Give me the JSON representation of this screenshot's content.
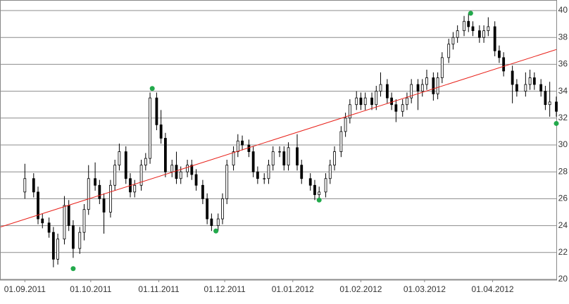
{
  "chart_data": {
    "type": "candlestick",
    "xlim": [
      "21.08.2011",
      "30.04.2012"
    ],
    "xticks": [
      "01.09.2011",
      "01.10.2011",
      "01.11.2011",
      "01.12.2011",
      "01.01.2012",
      "01.02.2012",
      "01.03.2012",
      "01.04.2012"
    ],
    "ylim": [
      20,
      40
    ],
    "yticks": [
      20,
      22,
      24,
      26,
      28,
      30,
      32,
      34,
      36,
      38,
      40
    ],
    "grid": true,
    "color": "#000000",
    "x": [
      "01.09.2011",
      "05.09.2011",
      "07.09.2011",
      "09.09.2011",
      "12.09.2011",
      "14.09.2011",
      "16.09.2011",
      "19.09.2011",
      "21.09.2011",
      "23.09.2011",
      "26.09.2011",
      "28.09.2011",
      "30.09.2011",
      "03.10.2011",
      "05.10.2011",
      "07.10.2011",
      "10.10.2011",
      "12.10.2011",
      "14.10.2011",
      "17.10.2011",
      "19.10.2011",
      "21.10.2011",
      "24.10.2011",
      "26.10.2011",
      "28.10.2011",
      "31.10.2011",
      "02.11.2011",
      "04.11.2011",
      "07.11.2011",
      "09.11.2011",
      "11.11.2011",
      "14.11.2011",
      "16.11.2011",
      "18.11.2011",
      "21.11.2011",
      "23.11.2011",
      "25.11.2011",
      "28.11.2011",
      "30.11.2011",
      "02.12.2011",
      "05.12.2011",
      "07.12.2011",
      "09.12.2011",
      "12.12.2011",
      "14.12.2011",
      "16.12.2011",
      "19.12.2011",
      "21.12.2011",
      "23.12.2011",
      "26.12.2011",
      "28.12.2011",
      "30.12.2011",
      "03.01.2012",
      "05.01.2012",
      "09.01.2012",
      "11.01.2012",
      "13.01.2012",
      "16.01.2012",
      "18.01.2012",
      "20.01.2012",
      "23.01.2012",
      "25.01.2012",
      "27.01.2012",
      "30.01.2012",
      "01.02.2012",
      "03.02.2012",
      "06.02.2012",
      "08.02.2012",
      "10.02.2012",
      "13.02.2012",
      "15.02.2012",
      "17.02.2012",
      "20.02.2012",
      "22.02.2012",
      "24.02.2012",
      "27.02.2012",
      "29.02.2012",
      "02.03.2012",
      "05.03.2012",
      "07.03.2012",
      "09.03.2012",
      "12.03.2012",
      "14.03.2012",
      "16.03.2012",
      "19.03.2012",
      "21.03.2012",
      "23.03.2012",
      "26.03.2012",
      "28.03.2012",
      "30.03.2012",
      "02.04.2012",
      "04.04.2012",
      "06.04.2012",
      "10.04.2012",
      "12.04.2012",
      "16.04.2012",
      "18.04.2012",
      "20.04.2012",
      "23.04.2012",
      "25.04.2012",
      "27.04.2012",
      "30.04.2012"
    ],
    "open": [
      26.5,
      27.5,
      26.5,
      24.5,
      24.2,
      23.5,
      21.5,
      23,
      25.5,
      24,
      22.3,
      23.5,
      25.2,
      27.5,
      27,
      26,
      25,
      27,
      28.5,
      29.5,
      27.5,
      26.5,
      27,
      28.5,
      29,
      33.5,
      31.5,
      30.5,
      28,
      28.5,
      27.5,
      28,
      28.5,
      27.8,
      27,
      26,
      24.5,
      24,
      24.5,
      26,
      28.5,
      29.5,
      30.3,
      30,
      29.5,
      28,
      27.5,
      27.5,
      28.5,
      29.5,
      29.5,
      28.5,
      29.8,
      28.5,
      27.5,
      27,
      26.3,
      26.5,
      27.5,
      28.5,
      29.5,
      31,
      32,
      33,
      33.5,
      33,
      33.5,
      33,
      34,
      34.5,
      33.5,
      33,
      32.5,
      33,
      33.5,
      34.5,
      34,
      34.5,
      35,
      33.8,
      35,
      36.5,
      37.5,
      38,
      38.5,
      39.2,
      38.8,
      38.5,
      38,
      38.5,
      38.8,
      37,
      36.5,
      35.5,
      34.5,
      34,
      34.5,
      35,
      34.5,
      34,
      33,
      33.2
    ],
    "high": [
      28.6,
      27.9,
      26.9,
      24.9,
      24.6,
      23.9,
      23.4,
      26.2,
      25.9,
      24.4,
      23.9,
      25.6,
      28.5,
      28.7,
      27.4,
      26.4,
      27.4,
      28.9,
      30.1,
      29.9,
      27.9,
      27.4,
      28.9,
      29.4,
      33.9,
      33.9,
      32.6,
      30.9,
      28.9,
      29.5,
      28.4,
      28.9,
      28.9,
      28.2,
      27.4,
      26.4,
      24.9,
      24.9,
      26.4,
      28.9,
      29.9,
      30.8,
      30.7,
      30.4,
      29.9,
      28.4,
      27.9,
      28.9,
      29.9,
      29.9,
      29.9,
      30.2,
      30.8,
      28.9,
      27.9,
      27.4,
      26.9,
      27.9,
      28.9,
      29.9,
      31.4,
      32.4,
      33.4,
      34,
      33.9,
      33.9,
      33.9,
      34.4,
      35.4,
      34.9,
      33.9,
      33.4,
      33.4,
      33.9,
      34.9,
      34.9,
      34.9,
      35.6,
      35.4,
      35.4,
      36.9,
      37.9,
      38.4,
      38.9,
      39.6,
      39.8,
      39.2,
      38.9,
      38.9,
      39.5,
      39.2,
      37.4,
      36.9,
      35.9,
      34.9,
      35.4,
      35.6,
      35.4,
      34.9,
      34.4,
      34.7,
      33.6
    ],
    "low": [
      26,
      26.1,
      24.1,
      23.8,
      23.1,
      20.9,
      21.1,
      22.6,
      23.6,
      21.6,
      21.9,
      22.9,
      24.8,
      26.6,
      25.6,
      23.4,
      24.6,
      26.6,
      28.1,
      27.1,
      26.1,
      26.1,
      26.6,
      28.1,
      28.6,
      31.1,
      30.1,
      27.6,
      27.6,
      27.1,
      27.1,
      27.6,
      27.4,
      26.6,
      25.6,
      24.1,
      23.6,
      23.6,
      24.1,
      25.6,
      28.1,
      29.1,
      29.6,
      29.1,
      27.6,
      27.1,
      27.1,
      27.1,
      28.1,
      29.1,
      28.1,
      28.1,
      28.1,
      27.1,
      26.6,
      25.9,
      25.9,
      26.1,
      27.1,
      28.1,
      29.1,
      30.6,
      31.6,
      32.6,
      32.6,
      32.6,
      32.6,
      32.6,
      33.6,
      33.1,
      32.6,
      31.7,
      32.1,
      32.6,
      33.1,
      32.6,
      33.6,
      34.1,
      33.3,
      33.4,
      34.6,
      36.1,
      37.1,
      37.6,
      38.1,
      38.4,
      38.1,
      37.6,
      37.6,
      38.1,
      36.6,
      36.1,
      35.1,
      33.1,
      33.6,
      33.6,
      34.1,
      34.1,
      33.6,
      32.6,
      32.1,
      32.1
    ],
    "close": [
      27.5,
      26.5,
      24.5,
      24.2,
      23.5,
      21.5,
      23,
      25.5,
      24,
      22.3,
      23.5,
      25.2,
      27.5,
      27,
      26,
      25,
      27,
      28.5,
      29.5,
      27.5,
      26.5,
      27,
      28.5,
      29,
      33.5,
      31.5,
      30.5,
      28,
      28.5,
      27.5,
      28,
      28.5,
      27.8,
      27,
      26,
      24.5,
      24,
      24.5,
      26,
      28.5,
      29.5,
      30.3,
      30,
      29.5,
      28,
      27.5,
      27.5,
      28.5,
      29.5,
      29.5,
      28.5,
      29.8,
      28.5,
      27.5,
      27,
      26.3,
      26.5,
      27.5,
      28.5,
      29.5,
      31,
      32,
      33,
      33.5,
      33,
      33.5,
      33,
      34,
      34.5,
      33.5,
      33,
      32.5,
      33,
      33.5,
      34.5,
      34,
      34.5,
      35,
      33.8,
      35,
      36.5,
      37.5,
      38,
      38.5,
      39.2,
      38.8,
      38.5,
      38,
      38.5,
      38.8,
      37,
      36.5,
      35.5,
      34.5,
      34,
      34.5,
      35,
      34.5,
      34,
      33,
      33.2,
      32.5
    ],
    "trend": {
      "color": "#e8221b",
      "x": [
        "21.08.2011",
        "30.04.2012"
      ],
      "values": [
        23.9,
        37.1
      ]
    },
    "points": {
      "color": "#22a94b",
      "x": [
        "23.09.2011",
        "29.10.2011",
        "27.11.2011",
        "13.01.2012",
        "22.03.2012",
        "30.04.2012"
      ],
      "values": [
        20.8,
        34.2,
        23.6,
        25.9,
        39.8,
        31.6
      ]
    }
  }
}
